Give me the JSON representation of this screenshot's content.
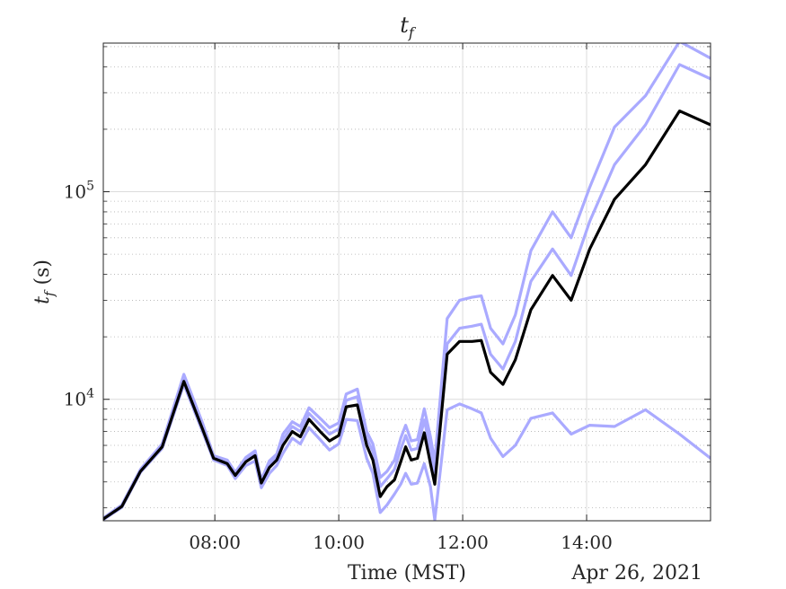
{
  "chart_data": {
    "type": "line",
    "title": "t_f",
    "title_main": "t",
    "title_sub": "f",
    "xlabel": "Time (MST)",
    "ylabel_main": "t",
    "ylabel_sub": "f",
    "ylabel_unit": " (s)",
    "date_label": "Apr 26, 2021",
    "yscale": "log",
    "xlim_hours": [
      6.2,
      16.0
    ],
    "ylim": [
      2600,
      520000
    ],
    "grid": true,
    "x_ticks": [
      {
        "hour": 8,
        "label": "08:00"
      },
      {
        "hour": 10,
        "label": "10:00"
      },
      {
        "hour": 12,
        "label": "12:00"
      },
      {
        "hour": 14,
        "label": "14:00"
      }
    ],
    "y_ticks": [
      {
        "value": 10000,
        "base": "10",
        "exp": "4"
      },
      {
        "value": 100000,
        "base": "10",
        "exp": "5"
      }
    ],
    "colors": {
      "main": "#000000",
      "band": "#aaaaff"
    },
    "series": [
      {
        "role": "main",
        "x": [
          6.2,
          6.5,
          6.8,
          7.15,
          7.5,
          7.8,
          7.98,
          8.2,
          8.33,
          8.5,
          8.65,
          8.75,
          8.88,
          9.0,
          9.1,
          9.25,
          9.38,
          9.52,
          9.7,
          9.85,
          10.0,
          10.12,
          10.3,
          10.45,
          10.55,
          10.67,
          10.78,
          10.9,
          11.0,
          11.08,
          11.17,
          11.27,
          11.38,
          11.48,
          11.55,
          11.75,
          11.95,
          12.15,
          12.3,
          12.45,
          12.65,
          12.85,
          13.1,
          13.45,
          13.75,
          14.05,
          14.45,
          14.95,
          15.5,
          16.0
        ],
        "y": [
          2650,
          3050,
          4500,
          5900,
          12200,
          7200,
          5200,
          4900,
          4300,
          5000,
          5350,
          3950,
          4700,
          5100,
          6000,
          7000,
          6600,
          8000,
          7000,
          6300,
          6700,
          9200,
          9400,
          6000,
          5100,
          3400,
          3800,
          4100,
          5000,
          5900,
          5100,
          5200,
          6900,
          4900,
          3900,
          16500,
          19000,
          19000,
          19200,
          13500,
          11800,
          15500,
          27000,
          39500,
          30000,
          53000,
          92000,
          135000,
          245000,
          210000
        ]
      },
      {
        "role": "band_upper_outer",
        "x": [
          6.2,
          6.5,
          6.8,
          7.15,
          7.5,
          7.8,
          7.98,
          8.2,
          8.33,
          8.5,
          8.65,
          8.75,
          8.88,
          9.0,
          9.1,
          9.25,
          9.38,
          9.52,
          9.7,
          9.85,
          10.0,
          10.12,
          10.3,
          10.45,
          10.55,
          10.67,
          10.78,
          10.9,
          11.0,
          11.08,
          11.17,
          11.27,
          11.38,
          11.48,
          11.55,
          11.75,
          11.95,
          12.15,
          12.3,
          12.45,
          12.65,
          12.85,
          13.1,
          13.45,
          13.75,
          14.05,
          14.45,
          14.95,
          15.5,
          16.0
        ],
        "y": [
          2680,
          3100,
          4600,
          6100,
          13200,
          7700,
          5350,
          5100,
          4450,
          5250,
          5650,
          4100,
          5050,
          5450,
          6800,
          7800,
          7400,
          9100,
          8100,
          7300,
          7700,
          10600,
          11200,
          7000,
          6100,
          4200,
          4500,
          5100,
          6500,
          7500,
          6300,
          6400,
          9000,
          6600,
          5000,
          24500,
          30000,
          31000,
          31500,
          22000,
          18500,
          25500,
          52000,
          80000,
          60000,
          105000,
          205000,
          290000,
          530000,
          440000
        ]
      },
      {
        "role": "band_upper_inner",
        "x": [
          6.2,
          6.5,
          6.8,
          7.15,
          7.5,
          7.8,
          7.98,
          8.2,
          8.33,
          8.5,
          8.65,
          8.75,
          8.88,
          9.0,
          9.1,
          9.25,
          9.38,
          9.52,
          9.7,
          9.85,
          10.0,
          10.12,
          10.3,
          10.45,
          10.55,
          10.67,
          10.78,
          10.9,
          11.0,
          11.08,
          11.17,
          11.27,
          11.38,
          11.48,
          11.55,
          11.75,
          11.95,
          12.15,
          12.3,
          12.45,
          12.65,
          12.85,
          13.1,
          13.45,
          13.75,
          14.05,
          14.45,
          14.95,
          15.5,
          16.0
        ],
        "y": [
          2660,
          3070,
          4550,
          6000,
          12700,
          7450,
          5280,
          5000,
          4380,
          5120,
          5500,
          4030,
          4880,
          5280,
          6400,
          7400,
          7000,
          8550,
          7550,
          6800,
          7200,
          9900,
          10300,
          6500,
          5600,
          3800,
          4150,
          4600,
          5750,
          6700,
          5700,
          5800,
          7950,
          5750,
          4450,
          18500,
          22000,
          22500,
          23000,
          16500,
          14000,
          19000,
          37000,
          53000,
          39500,
          72000,
          135000,
          210000,
          410000,
          350000
        ]
      },
      {
        "role": "band_lower",
        "x": [
          6.2,
          6.5,
          6.8,
          7.15,
          7.5,
          7.8,
          7.98,
          8.2,
          8.33,
          8.5,
          8.65,
          8.75,
          8.88,
          9.0,
          9.1,
          9.25,
          9.38,
          9.52,
          9.7,
          9.85,
          10.0,
          10.12,
          10.3,
          10.45,
          10.55,
          10.67,
          10.78,
          10.9,
          11.0,
          11.08,
          11.17,
          11.27,
          11.38,
          11.48,
          11.55,
          11.75,
          11.95,
          12.15,
          12.3,
          12.45,
          12.65,
          12.85,
          13.1,
          13.45,
          13.75,
          14.05,
          14.45,
          14.95,
          15.5,
          16.0
        ],
        "y": [
          2630,
          3020,
          4450,
          5800,
          11800,
          7000,
          5100,
          4800,
          4150,
          4800,
          5050,
          3750,
          4400,
          4800,
          5500,
          6500,
          6100,
          7300,
          6400,
          5700,
          6100,
          8000,
          7900,
          5200,
          4400,
          2850,
          3100,
          3500,
          3900,
          4400,
          3900,
          3950,
          4900,
          3800,
          2620,
          8900,
          9500,
          9000,
          8600,
          6500,
          5300,
          6000,
          8100,
          8600,
          6800,
          7500,
          7400,
          8900,
          6800,
          5200
        ]
      }
    ]
  }
}
